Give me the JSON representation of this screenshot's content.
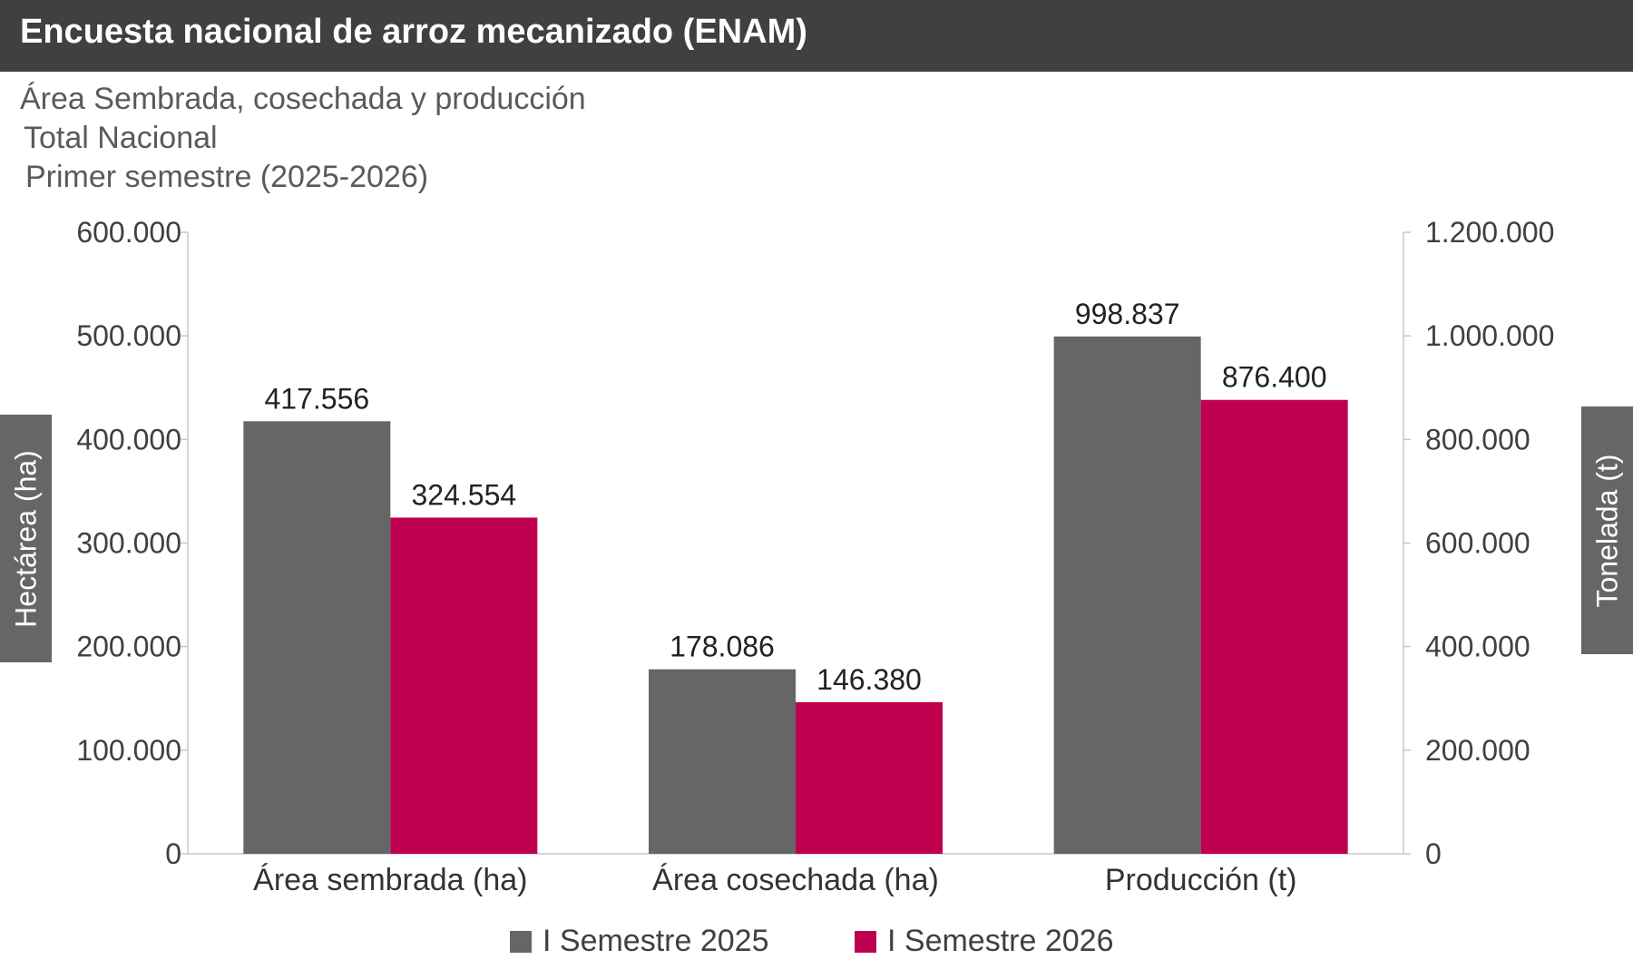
{
  "header": {
    "title": "Encuesta nacional de arroz mecanizado (ENAM)"
  },
  "subtitles": [
    "Área Sembrada, cosechada y producción",
    "Total Nacional",
    "Primer semestre (2025-2026)"
  ],
  "chart_data": {
    "type": "bar",
    "categories": [
      "Área sembrada (ha)",
      "Área cosechada (ha)",
      "Producción (t)"
    ],
    "series": [
      {
        "name": "I Semestre 2025",
        "color": "#666666",
        "values": [
          417556,
          178086,
          998837
        ],
        "labels": [
          "417.556",
          "178.086",
          "998.837"
        ]
      },
      {
        "name": "I Semestre 2026",
        "color": "#be004f",
        "values": [
          324554,
          146380,
          876400
        ],
        "labels": [
          "324.554",
          "146.380",
          "876.400"
        ]
      }
    ],
    "axis_for_category": [
      "left",
      "left",
      "right"
    ],
    "ylabel_left": "Hectárea (ha)",
    "ylabel_right": "Tonelada (t)",
    "ylim_left": [
      0,
      600000
    ],
    "ylim_right": [
      0,
      1200000
    ],
    "yticks_left": [
      "0",
      "100.000",
      "200.000",
      "300.000",
      "400.000",
      "500.000",
      "600.000"
    ],
    "yticks_right": [
      "0",
      "200.000",
      "400.000",
      "600.000",
      "800.000",
      "1.000.000",
      "1.200.000"
    ],
    "grid": false,
    "legend_position": "bottom-center"
  }
}
